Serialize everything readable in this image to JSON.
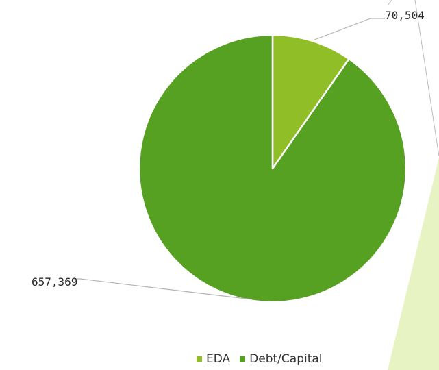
{
  "chart_data": {
    "type": "pie",
    "categories": [
      "EDA",
      "Debt/Capital"
    ],
    "values": [
      70504,
      657369
    ],
    "data_labels": [
      "70,504",
      "657,369"
    ],
    "colors": [
      "#8fbe27",
      "#56a022"
    ],
    "legend_position": "bottom"
  },
  "legend": {
    "items": [
      {
        "label": "EDA",
        "color": "#8fbe27"
      },
      {
        "label": "Debt/Capital",
        "color": "#56a022"
      }
    ]
  },
  "decoration": {
    "accent_color": "#e8f3c4"
  }
}
